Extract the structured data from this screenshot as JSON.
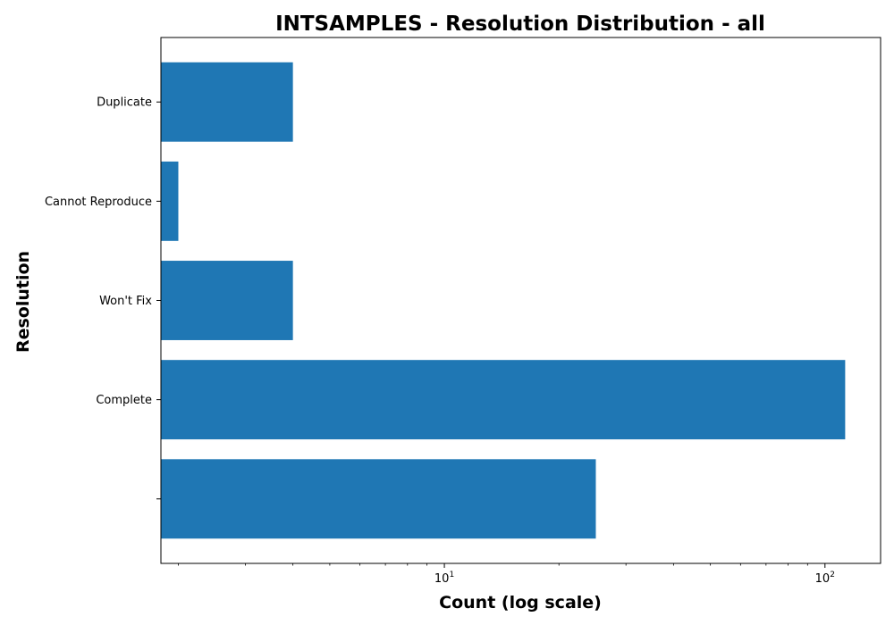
{
  "chart_data": {
    "type": "bar",
    "orientation": "horizontal",
    "title": "INTSAMPLES - Resolution Distribution - all",
    "xlabel": "Count (log scale)",
    "ylabel": "Resolution",
    "x_scale": "log",
    "xlim": [
      1.8,
      140
    ],
    "x_ticks": [
      {
        "base": "10",
        "exp": "1",
        "value": 10
      },
      {
        "base": "10",
        "exp": "2",
        "value": 100
      }
    ],
    "categories": [
      "",
      "Complete",
      "Won't Fix",
      "Cannot Reproduce",
      "Duplicate"
    ],
    "values": [
      25,
      113,
      4,
      2,
      4
    ],
    "bar_color": "#1f77b4",
    "grid": false
  }
}
